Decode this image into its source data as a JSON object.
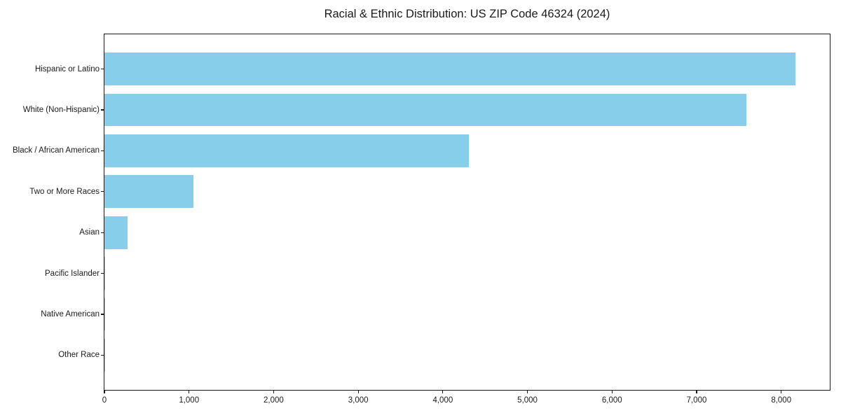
{
  "chart_data": {
    "type": "bar",
    "orientation": "horizontal",
    "title": "Racial & Ethnic Distribution: US ZIP Code 46324 (2024)",
    "categories": [
      "Hispanic or Latino",
      "White (Non-Hispanic)",
      "Black / African American",
      "Two or More Races",
      "Asian",
      "Pacific Islander",
      "Native American",
      "Other Race"
    ],
    "values": [
      8166,
      7588,
      4310,
      1055,
      276,
      5,
      10,
      5
    ],
    "xlabel": "",
    "ylabel": "",
    "xlim": [
      0,
      8574
    ],
    "xticks": [
      0,
      1000,
      2000,
      3000,
      4000,
      5000,
      6000,
      7000,
      8000
    ],
    "xtick_labels": [
      "0",
      "1,000",
      "2,000",
      "3,000",
      "4,000",
      "5,000",
      "6,000",
      "7,000",
      "8,000"
    ],
    "bar_color": "#87CEEB",
    "spine_color": "#1a1a1a",
    "grid": false,
    "legend": null
  }
}
